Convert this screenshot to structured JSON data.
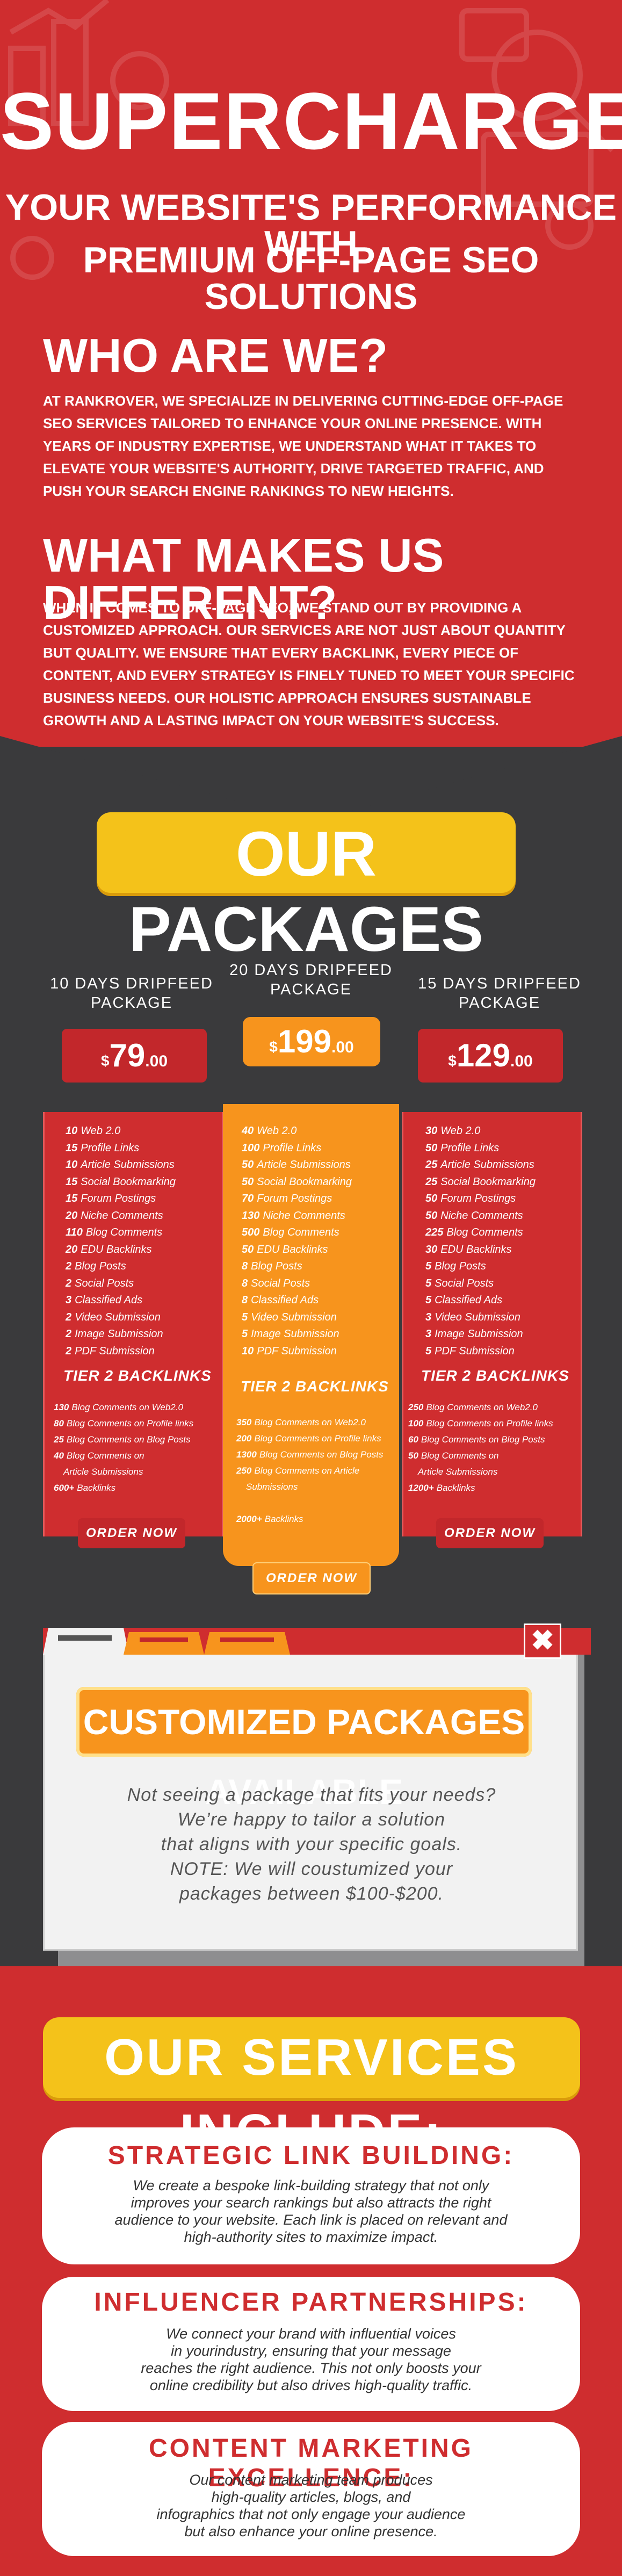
{
  "hero": {
    "title": "SUPERCHARGE",
    "subtitle_line1": "YOUR WEBSITE'S PERFORMANCE WITH",
    "subtitle_line2": "PREMIUM OFF-PAGE SEO SOLUTIONS"
  },
  "who": {
    "heading": "WHO ARE WE?",
    "text": "AT RANKROVER, WE SPECIALIZE IN DELIVERING CUTTING-EDGE OFF-PAGE SEO SERVICES TAILORED TO ENHANCE YOUR ONLINE PRESENCE. WITH YEARS OF INDUSTRY EXPERTISE, WE UNDERSTAND WHAT IT TAKES TO ELEVATE YOUR WEBSITE'S AUTHORITY, DRIVE TARGETED TRAFFIC, AND PUSH YOUR SEARCH ENGINE RANKINGS TO NEW HEIGHTS."
  },
  "different": {
    "heading": "WHAT MAKES US DIFFERENT?",
    "text": "WHEN IT COMES TO OFF-PAGE SEO, WE STAND OUT BY PROVIDING A CUSTOMIZED APPROACH. OUR SERVICES ARE NOT JUST ABOUT QUANTITY BUT QUALITY. WE ENSURE THAT EVERY BACKLINK, EVERY PIECE OF CONTENT, AND EVERY STRATEGY IS FINELY TUNED TO MEET YOUR SPECIFIC BUSINESS NEEDS. OUR HOLISTIC APPROACH ENSURES SUSTAINABLE GROWTH AND A LASTING IMPACT ON YOUR WEBSITE'S SUCCESS."
  },
  "packages": {
    "title": "OUR PACKAGES",
    "tier_label": "TIER 2 BACKLINKS",
    "order_label": "ORDER NOW",
    "items": [
      {
        "name_line1": "10 DAYS DRIPFEED",
        "name_line2": "PACKAGE",
        "currency": "$",
        "price": "79",
        "cents": ".00",
        "features": [
          [
            "10",
            "Web 2.0"
          ],
          [
            "15",
            "Profile Links"
          ],
          [
            "10",
            "Article Submissions"
          ],
          [
            "15",
            "Social Bookmarking"
          ],
          [
            "15",
            "Forum Postings"
          ],
          [
            "20",
            "Niche Comments"
          ],
          [
            "110",
            "Blog Comments"
          ],
          [
            "20",
            "EDU Backlinks"
          ],
          [
            "2",
            "Blog Posts"
          ],
          [
            "2",
            "Social Posts"
          ],
          [
            "3",
            "Classified Ads"
          ],
          [
            "2",
            "Video Submission"
          ],
          [
            "2",
            "Image Submission"
          ],
          [
            "2",
            "PDF Submission"
          ]
        ],
        "tier2": [
          [
            "130",
            "Blog Comments on Web2.0"
          ],
          [
            "80",
            "Blog Comments on Profile links"
          ],
          [
            "25",
            "Blog Comments on Blog Posts"
          ],
          [
            "40",
            "Blog Comments on"
          ],
          [
            "",
            "Article Submissions"
          ],
          [
            "600+",
            "Backlinks"
          ]
        ]
      },
      {
        "name_line1": "20 DAYS DRIPFEED",
        "name_line2": "PACKAGE",
        "currency": "$",
        "price": "199",
        "cents": ".00",
        "features": [
          [
            "40",
            "Web 2.0"
          ],
          [
            "100",
            "Profile Links"
          ],
          [
            "50",
            "Article Submissions"
          ],
          [
            "50",
            "Social Bookmarking"
          ],
          [
            "70",
            "Forum Postings"
          ],
          [
            "130",
            "Niche Comments"
          ],
          [
            "500",
            "Blog Comments"
          ],
          [
            "50",
            "EDU Backlinks"
          ],
          [
            "8",
            "Blog Posts"
          ],
          [
            "8",
            "Social Posts"
          ],
          [
            "8",
            "Classified Ads"
          ],
          [
            "5",
            "Video Submission"
          ],
          [
            "5",
            "Image Submission"
          ],
          [
            "10",
            "PDF Submission"
          ]
        ],
        "tier2": [
          [
            "350",
            "Blog Comments on Web2.0"
          ],
          [
            "200",
            "Blog Comments on Profile links"
          ],
          [
            "1300",
            "Blog Comments on Blog Posts"
          ],
          [
            "250",
            "Blog Comments on Article"
          ],
          [
            "",
            "Submissions"
          ],
          [
            "",
            ""
          ],
          [
            "2000+",
            "Backlinks"
          ]
        ]
      },
      {
        "name_line1": "15 DAYS DRIPFEED",
        "name_line2": "PACKAGE",
        "currency": "$",
        "price": "129",
        "cents": ".00",
        "features": [
          [
            "30",
            "Web 2.0"
          ],
          [
            "50",
            "Profile Links"
          ],
          [
            "25",
            "Article Submissions"
          ],
          [
            "25",
            "Social Bookmarking"
          ],
          [
            "50",
            "Forum Postings"
          ],
          [
            "50",
            "Niche Comments"
          ],
          [
            "225",
            "Blog Comments"
          ],
          [
            "30",
            "EDU Backlinks"
          ],
          [
            "5",
            "Blog Posts"
          ],
          [
            "5",
            "Social Posts"
          ],
          [
            "5",
            "Classified Ads"
          ],
          [
            "3",
            "Video Submission"
          ],
          [
            "3",
            "Image Submission"
          ],
          [
            "5",
            "PDF Submission"
          ]
        ],
        "tier2": [
          [
            "250",
            "Blog Comments on Web2.0"
          ],
          [
            "100",
            "Blog Comments on Profile links"
          ],
          [
            "60",
            "Blog Comments on Blog Posts"
          ],
          [
            "50",
            "Blog Comments on"
          ],
          [
            "",
            "Article Submissions"
          ],
          [
            "1200+",
            "Backlinks"
          ]
        ]
      }
    ]
  },
  "custom": {
    "title": "CUSTOMIZED PACKAGES AVAILABLE",
    "text_lines": [
      "Not seeing a package that fits your needs?",
      "We’re happy to tailor a solution",
      "that aligns with your specific goals.",
      "NOTE: We will coustumized your",
      "packages between $100-$200."
    ],
    "close_glyph": "✖"
  },
  "services": {
    "title": "OUR SERVICES INCLUDE:",
    "items": [
      {
        "heading": "STRATEGIC LINK BUILDING:",
        "lines": [
          "We create a bespoke link-building strategy that not only",
          "improves your search rankings but also attracts the right",
          "audience to your website. Each link is placed on relevant and",
          "high-authority sites to maximize impact."
        ]
      },
      {
        "heading": "INFLUENCER PARTNERSHIPS:",
        "lines": [
          "We connect your brand with influential voices",
          "in yourindustry, ensuring that your message",
          "reaches the right audience. This not only boosts your",
          "online credibility but also drives high-quality traffic."
        ]
      },
      {
        "heading": "CONTENT MARKETING EXCELLENCE:",
        "lines": [
          "Our content marketing team produces",
          "high-quality articles, blogs, and",
          "infographics that not only engage your audience",
          "but also enhance your online presence."
        ]
      }
    ]
  },
  "colors": {
    "red": "#cf2d2f",
    "dark": "#3a3a3c",
    "orange": "#f7941d",
    "yellow": "#f4c21a"
  }
}
